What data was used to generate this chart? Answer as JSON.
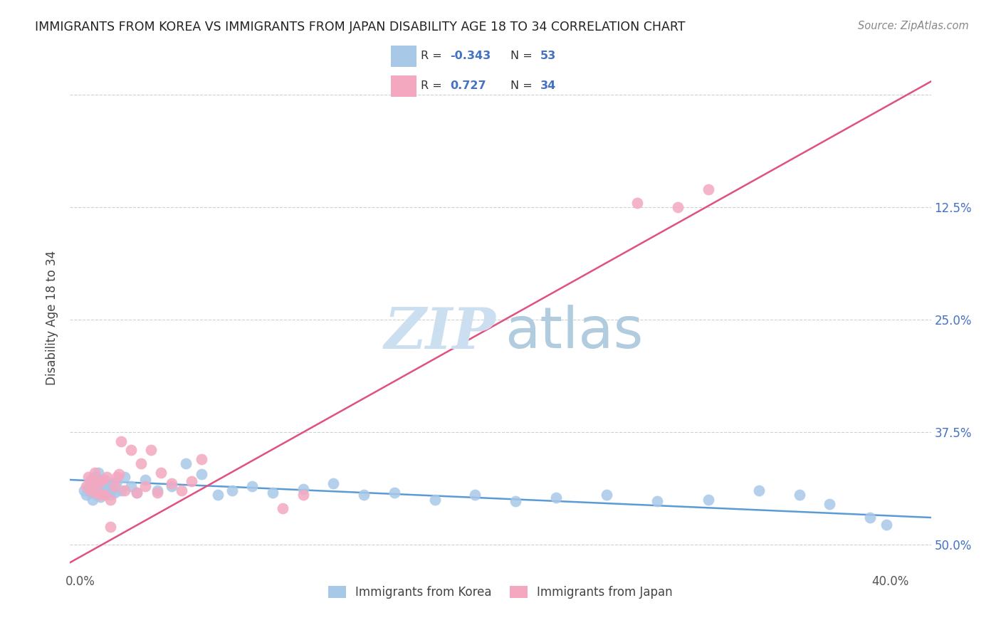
{
  "title": "IMMIGRANTS FROM KOREA VS IMMIGRANTS FROM JAPAN DISABILITY AGE 18 TO 34 CORRELATION CHART",
  "source": "Source: ZipAtlas.com",
  "ylabel": "Disability Age 18 to 34",
  "xlim": [
    -0.005,
    0.42
  ],
  "ylim": [
    -0.03,
    0.535
  ],
  "korea_R": -0.343,
  "korea_N": 53,
  "japan_R": 0.727,
  "japan_N": 34,
  "korea_color": "#a8c8e8",
  "japan_color": "#f4a8c0",
  "korea_line_color": "#5b9bd5",
  "japan_line_color": "#e05080",
  "watermark_zip_color": "#ccdff0",
  "watermark_atlas_color": "#b0ccde",
  "legend_label_korea": "Immigrants from Korea",
  "legend_label_japan": "Immigrants from Japan",
  "legend_text_color": "#4472c4",
  "legend_R_label_color": "#333333",
  "korea_scatter_x": [
    0.002,
    0.003,
    0.004,
    0.005,
    0.005,
    0.006,
    0.007,
    0.007,
    0.008,
    0.008,
    0.009,
    0.009,
    0.01,
    0.01,
    0.011,
    0.012,
    0.012,
    0.013,
    0.014,
    0.015,
    0.015,
    0.016,
    0.017,
    0.018,
    0.02,
    0.022,
    0.025,
    0.028,
    0.032,
    0.038,
    0.045,
    0.052,
    0.06,
    0.068,
    0.075,
    0.085,
    0.095,
    0.11,
    0.125,
    0.14,
    0.155,
    0.175,
    0.195,
    0.215,
    0.235,
    0.26,
    0.285,
    0.31,
    0.335,
    0.355,
    0.37,
    0.39,
    0.398
  ],
  "korea_scatter_y": [
    0.06,
    0.055,
    0.065,
    0.058,
    0.072,
    0.05,
    0.062,
    0.068,
    0.055,
    0.075,
    0.06,
    0.08,
    0.053,
    0.07,
    0.065,
    0.058,
    0.072,
    0.06,
    0.065,
    0.068,
    0.055,
    0.062,
    0.058,
    0.07,
    0.06,
    0.075,
    0.065,
    0.058,
    0.072,
    0.06,
    0.065,
    0.09,
    0.078,
    0.055,
    0.06,
    0.065,
    0.058,
    0.062,
    0.068,
    0.055,
    0.058,
    0.05,
    0.055,
    0.048,
    0.052,
    0.055,
    0.048,
    0.05,
    0.06,
    0.055,
    0.045,
    0.03,
    0.022
  ],
  "japan_scatter_x": [
    0.003,
    0.004,
    0.005,
    0.006,
    0.007,
    0.008,
    0.009,
    0.01,
    0.011,
    0.013,
    0.015,
    0.017,
    0.019,
    0.022,
    0.025,
    0.028,
    0.032,
    0.038,
    0.045,
    0.055,
    0.02,
    0.03,
    0.035,
    0.012,
    0.018,
    0.04,
    0.05,
    0.06,
    0.1,
    0.11,
    0.015,
    0.275,
    0.295,
    0.31
  ],
  "japan_scatter_y": [
    0.065,
    0.075,
    0.06,
    0.07,
    0.08,
    0.058,
    0.068,
    0.055,
    0.072,
    0.075,
    0.05,
    0.065,
    0.078,
    0.06,
    0.105,
    0.058,
    0.065,
    0.058,
    0.068,
    0.07,
    0.115,
    0.09,
    0.105,
    0.055,
    0.075,
    0.08,
    0.06,
    0.095,
    0.04,
    0.055,
    0.02,
    0.38,
    0.375,
    0.395
  ],
  "japan_line_x0": -0.005,
  "japan_line_y0": -0.02,
  "japan_line_x1": 0.42,
  "japan_line_y1": 0.515,
  "korea_line_x0": -0.005,
  "korea_line_y0": 0.072,
  "korea_line_x1": 0.42,
  "korea_line_y1": 0.03
}
